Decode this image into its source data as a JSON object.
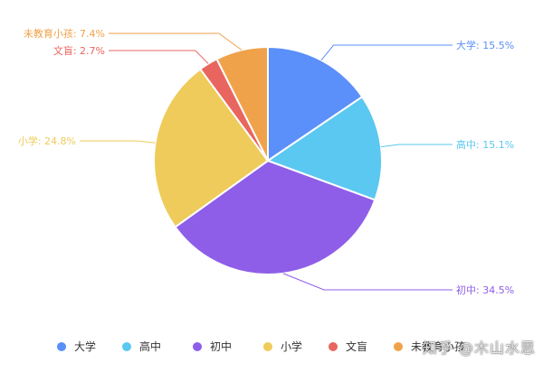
{
  "chart_data": {
    "type": "pie",
    "title": "",
    "slices": [
      {
        "name": "大学",
        "value": 15.5,
        "label": "大学: 15.5%",
        "color": "#5b8ff9"
      },
      {
        "name": "高中",
        "value": 15.1,
        "label": "高中: 15.1%",
        "color": "#5ac8f0"
      },
      {
        "name": "初中",
        "value": 34.5,
        "label": "初中: 34.5%",
        "color": "#8e5ee8"
      },
      {
        "name": "小学",
        "value": 24.8,
        "label": "小学: 24.8%",
        "color": "#eecb5a"
      },
      {
        "name": "文盲",
        "value": 2.7,
        "label": "文盲: 2.7%",
        "color": "#e8665f"
      },
      {
        "name": "未教育小孩",
        "value": 7.4,
        "label": "未教育小孩: 7.4%",
        "color": "#f0a24a"
      }
    ],
    "legend": {
      "position": "bottom",
      "items": [
        "大学",
        "高中",
        "初中",
        "小学",
        "文盲",
        "未教育小孩"
      ]
    }
  },
  "watermark": {
    "text": "知乎 @木山水思"
  }
}
